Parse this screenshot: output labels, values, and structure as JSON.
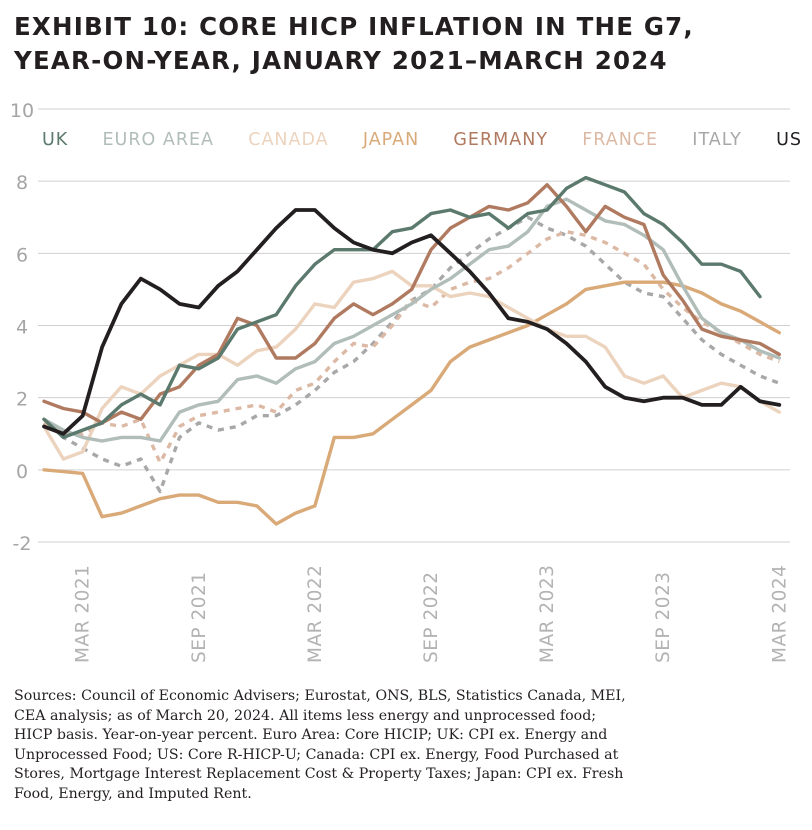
{
  "title": {
    "line1": "EXHIBIT 10: CORE HICP INFLATION IN THE G7,",
    "line2": "YEAR-ON-YEAR, JANUARY 2021–MARCH 2024"
  },
  "source": {
    "line1": "Sources: Council of Economic Advisers; Eurostat, ONS, BLS, Statistics Canada, MEI,",
    "line2": "CEA analysis; as of March 20, 2024. All items less energy and unprocessed food;",
    "line3": "HICP basis. Year-on-year percent. Euro Area: Core HICIP; UK: CPI ex. Energy and",
    "line4": "Unprocessed Food; US: Core R-HICP-U; Canada: CPI ex. Energy, Food Purchased at",
    "line5": "Stores, Mortgage Interest Replacement Cost & Property Taxes; Japan: CPI ex. Fresh",
    "line6": "Food, Energy, and Imputed Rent."
  },
  "chart_data": {
    "type": "line",
    "title": "EXHIBIT 10: CORE HICP INFLATION IN THE G7, YEAR-ON-YEAR, JANUARY 2021–MARCH 2024",
    "xlabel": "",
    "ylabel": "",
    "ylim": [
      -2,
      10
    ],
    "yticks": [
      "-2",
      "0",
      "2",
      "4",
      "6",
      "8",
      "10"
    ],
    "xticks": [
      "MAR 2021",
      "SEP 2021",
      "MAR 2022",
      "SEP 2022",
      "MAR 2023",
      "SEP 2023",
      "MAR 2024"
    ],
    "grid": true,
    "legend_position": "top",
    "x": [
      "2021-01",
      "2021-02",
      "2021-03",
      "2021-04",
      "2021-05",
      "2021-06",
      "2021-07",
      "2021-08",
      "2021-09",
      "2021-10",
      "2021-11",
      "2021-12",
      "2022-01",
      "2022-02",
      "2022-03",
      "2022-04",
      "2022-05",
      "2022-06",
      "2022-07",
      "2022-08",
      "2022-09",
      "2022-10",
      "2022-11",
      "2022-12",
      "2023-01",
      "2023-02",
      "2023-03",
      "2023-04",
      "2023-05",
      "2023-06",
      "2023-07",
      "2023-08",
      "2023-09",
      "2023-10",
      "2023-11",
      "2023-12",
      "2024-01",
      "2024-02",
      "2024-03"
    ],
    "series": [
      {
        "name": "UK",
        "color": "#5b7a6d",
        "dash": false,
        "values": [
          1.4,
          0.9,
          1.1,
          1.3,
          1.8,
          2.1,
          1.8,
          2.9,
          2.8,
          3.1,
          3.9,
          4.1,
          4.3,
          5.1,
          5.7,
          6.1,
          6.1,
          6.1,
          6.6,
          6.7,
          7.1,
          7.2,
          7.0,
          7.1,
          6.7,
          7.1,
          7.2,
          7.8,
          8.1,
          7.9,
          7.7,
          7.1,
          6.8,
          6.3,
          5.7,
          5.7,
          5.5,
          4.8,
          null
        ]
      },
      {
        "name": "EURO AREA",
        "color": "#b1bdb8",
        "dash": false,
        "values": [
          1.4,
          1.1,
          0.9,
          0.8,
          0.9,
          0.9,
          0.8,
          1.6,
          1.8,
          1.9,
          2.5,
          2.6,
          2.4,
          2.8,
          3.0,
          3.5,
          3.7,
          4.0,
          4.3,
          4.6,
          5.0,
          5.3,
          5.7,
          6.1,
          6.2,
          6.6,
          7.3,
          7.5,
          7.2,
          6.9,
          6.8,
          6.5,
          6.1,
          5.1,
          4.2,
          3.8,
          3.6,
          3.3,
          3.1
        ]
      },
      {
        "name": "CANADA",
        "color": "#ecd3bd",
        "dash": false,
        "values": [
          1.2,
          0.3,
          0.5,
          1.7,
          2.3,
          2.1,
          2.6,
          2.9,
          3.2,
          3.2,
          2.9,
          3.3,
          3.4,
          3.9,
          4.6,
          4.5,
          5.2,
          5.3,
          5.5,
          5.1,
          5.1,
          4.8,
          4.9,
          4.8,
          4.5,
          4.2,
          3.9,
          3.7,
          3.7,
          3.4,
          2.6,
          2.4,
          2.6,
          2.0,
          2.2,
          2.4,
          2.3,
          1.9,
          1.6
        ]
      },
      {
        "name": "JAPAN",
        "color": "#d9aa78",
        "dash": false,
        "values": [
          0.0,
          -0.05,
          -0.1,
          -1.3,
          -1.2,
          -1.0,
          -0.8,
          -0.7,
          -0.7,
          -0.9,
          -0.9,
          -1.0,
          -1.5,
          -1.2,
          -1.0,
          0.9,
          0.9,
          1.0,
          1.4,
          1.8,
          2.2,
          3.0,
          3.4,
          3.6,
          3.8,
          4.0,
          4.3,
          4.6,
          5.0,
          5.1,
          5.2,
          5.2,
          5.2,
          5.1,
          4.9,
          4.6,
          4.4,
          4.1,
          3.8
        ]
      },
      {
        "name": "GERMANY",
        "color": "#b07a60",
        "dash": false,
        "values": [
          1.9,
          1.7,
          1.6,
          1.3,
          1.6,
          1.4,
          2.1,
          2.3,
          2.9,
          3.2,
          4.2,
          4.0,
          3.1,
          3.1,
          3.5,
          4.2,
          4.6,
          4.3,
          4.6,
          5.0,
          6.1,
          6.7,
          7.0,
          7.3,
          7.2,
          7.4,
          7.9,
          7.3,
          6.6,
          7.3,
          7.0,
          6.8,
          5.4,
          4.7,
          3.9,
          3.7,
          3.6,
          3.5,
          3.2
        ]
      },
      {
        "name": "FRANCE",
        "color": "#dcb9a4",
        "dash": true,
        "values": [
          1.3,
          1.0,
          1.0,
          1.3,
          1.2,
          1.4,
          0.2,
          1.2,
          1.5,
          1.6,
          1.7,
          1.8,
          1.6,
          2.2,
          2.4,
          3.0,
          3.5,
          3.4,
          4.0,
          4.7,
          4.5,
          5.0,
          5.2,
          5.3,
          5.6,
          6.0,
          6.4,
          6.6,
          6.5,
          6.3,
          6.0,
          5.7,
          5.0,
          4.5,
          4.1,
          3.8,
          3.5,
          3.2,
          3.0
        ]
      },
      {
        "name": "ITALY",
        "color": "#a8a8a8",
        "dash": true,
        "values": [
          1.4,
          0.9,
          0.6,
          0.3,
          0.1,
          0.3,
          -0.6,
          0.9,
          1.3,
          1.1,
          1.2,
          1.5,
          1.5,
          1.8,
          2.2,
          2.7,
          3.0,
          3.5,
          4.1,
          4.7,
          5.0,
          5.6,
          6.0,
          6.4,
          6.7,
          7.0,
          6.7,
          6.5,
          6.2,
          5.7,
          5.2,
          4.9,
          4.8,
          4.2,
          3.6,
          3.2,
          2.9,
          2.6,
          2.4
        ]
      },
      {
        "name": "US",
        "color": "#231f20",
        "dash": false,
        "values": [
          1.2,
          1.0,
          1.5,
          3.4,
          4.6,
          5.3,
          5.0,
          4.6,
          4.5,
          5.1,
          5.5,
          6.1,
          6.7,
          7.2,
          7.2,
          6.7,
          6.3,
          6.1,
          6.0,
          6.3,
          6.5,
          6.0,
          5.5,
          4.9,
          4.2,
          4.1,
          3.9,
          3.5,
          3.0,
          2.3,
          2.0,
          1.9,
          2.0,
          2.0,
          1.8,
          1.8,
          2.3,
          1.9,
          1.8
        ]
      }
    ]
  }
}
